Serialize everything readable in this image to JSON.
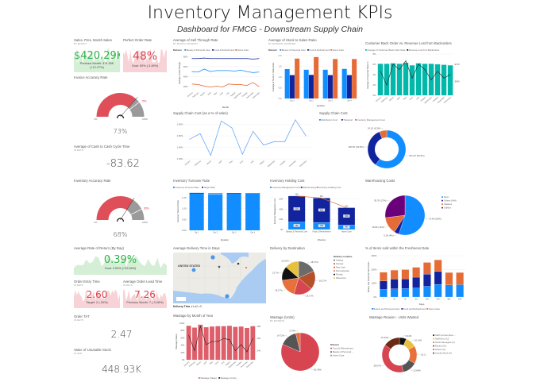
{
  "header": {
    "title": "Inventory Management KPIs",
    "subtitle": "Dashboard for FMCG - Downstream Supply Chain"
  },
  "kpis": {
    "sales": {
      "title": "Sales, Prev. Month Sales",
      "subtitle": "BY MONTH",
      "value": "$420.29K",
      "comparison": "Previous Month: 374.35K",
      "change": "(+12.27%)",
      "color": "#2fb34b",
      "fill": "#d5efd6"
    },
    "perfect_order": {
      "title": "Perfect Order Rate",
      "value": "48%",
      "comparison": "Goal: 50% (-3.46%)",
      "color": "#d9434f",
      "fill": "#f7d3d7"
    },
    "invoice_accuracy": {
      "title": "Invoice Accuracy Rate",
      "value": "73%",
      "target_label": "79%",
      "min_label": "0%",
      "max_label": "100%",
      "value_fraction": 0.73,
      "target_fraction": 0.79
    },
    "cash_cycle": {
      "title": "Average of Cash to Cash Cycle Time",
      "subtitle": "IN DAYS",
      "value": "-83.62"
    },
    "inventory_accuracy": {
      "title": "Inventory Accuracy Rate",
      "value": "68%",
      "target_label": "85%",
      "min_label": "0%",
      "max_label": "100%",
      "value_fraction": 0.68,
      "target_fraction": 0.85
    },
    "return_rate": {
      "title": "Average Rate of Return (By Day)",
      "value": "0.39%",
      "comparison": "Goal: 0.50% (+22.56%)",
      "color": "#2fb34b",
      "fill": "#d5efd6"
    },
    "order_entry": {
      "title": "Order Entry Time",
      "subtitle": "IN DAYS",
      "value": "2.60",
      "comparison": "Target: 2 (-30%)",
      "color": "#d9434f",
      "fill": "#f7d3d7"
    },
    "lead_time": {
      "title": "Average Order Lead Time",
      "subtitle": "IN DAYS",
      "value": "7.26",
      "comparison": "Previous Month: 7 (-3.08%)",
      "color": "#d9434f",
      "fill": "#f7d3d7"
    },
    "order_tat": {
      "title": "Order TAT",
      "subtitle": "IN DAYS",
      "value": "2.47"
    },
    "unusable_stock": {
      "title": "Value of Unusable Stock",
      "subtitle": "IN USD",
      "value": "448.93K"
    }
  },
  "gauge_colors": {
    "value": "#de4f5a",
    "remainder": "#9a9a9a",
    "target": "#ffffff"
  },
  "map": {
    "title": "Average Delivery Time in Days",
    "country_label": "UNITED STATES",
    "legend_title": "Delivery Time",
    "legend": [
      {
        "label": "1",
        "color": "#e02b2b"
      },
      {
        "label": "2",
        "color": "#333333"
      },
      {
        "label": "3",
        "color": "#3a8ef0"
      }
    ]
  },
  "chart_data": [
    {
      "id": "sell_through",
      "type": "line",
      "title": "Average of Sell Through Rate",
      "subtitle": "BY MONTH, DIVISION",
      "legend_title": "Division",
      "categories": [
        "January",
        "February",
        "March",
        "April",
        "May",
        "June",
        "July",
        "August",
        "September",
        "October",
        "November",
        "December"
      ],
      "series": [
        {
          "name": "Beauty & Personal Care",
          "color": "#118dff",
          "values": [
            50,
            49,
            55,
            50,
            52,
            52,
            52,
            51,
            53,
            50,
            48,
            49
          ]
        },
        {
          "name": "Food & Refreshment",
          "color": "#12239e",
          "values": [
            76,
            76,
            77,
            76,
            76,
            76,
            76,
            76,
            76,
            76,
            75,
            76
          ]
        },
        {
          "name": "Home Care",
          "color": "#e66c37",
          "values": [
            25,
            24,
            21,
            19,
            21,
            19,
            25,
            24,
            24,
            22,
            28,
            20
          ]
        }
      ],
      "xlabel": "Month",
      "ylabel": "Average of Sell Through",
      "ylim": [
        12,
        82
      ],
      "yticks": [
        20,
        40,
        60,
        80
      ],
      "ysuffix": "%",
      "grid": true
    },
    {
      "id": "stock_sales",
      "type": "bar",
      "title": "Average of Stock to Sales Ratio",
      "subtitle": "BY DIVISION, QUARTER",
      "legend_title": "Division",
      "categories": [
        "Qtr 1",
        "Qtr 2",
        "Qtr 3",
        "Qtr 4"
      ],
      "series": [
        {
          "name": "Beauty & Personal Care",
          "color": "#118dff",
          "values": [
            1.37,
            1.34,
            1.34,
            1.38
          ]
        },
        {
          "name": "Food & Refreshment",
          "color": "#12239e",
          "values": [
            1.09,
            1.1,
            1.09,
            1.09
          ]
        },
        {
          "name": "Home Care",
          "color": "#e66c37",
          "values": [
            1.86,
            1.93,
            1.84,
            1.84
          ]
        }
      ],
      "xlabel": "Quarter",
      "ylabel": "Average of Stock to Sales Ratio",
      "ylim": [
        0,
        2
      ],
      "yticks": [
        0,
        0.5,
        1,
        1.5,
        2
      ],
      "ydecimals": 1,
      "grid": true
    },
    {
      "id": "back_order",
      "type": "bar_line",
      "title": "Customer Back Order vs. Revenue Lost from Backorders",
      "categories": [
        "January",
        "February",
        "March",
        "April",
        "May",
        "June",
        "July",
        "August",
        "September",
        "October",
        "November",
        "December"
      ],
      "series": [
        {
          "name": "Average of Customer Back Order Rate",
          "color": "#01b8aa",
          "values": [
            6.1,
            6.1,
            6.2,
            6.1,
            6.3,
            5.8,
            6.2,
            6.1,
            6.1,
            6.0,
            5.9,
            5.8
          ]
        },
        {
          "name": "Revenue Lost from Backorders",
          "color": "#222222",
          "axis": "right",
          "values": [
            66,
            58,
            70,
            67,
            72,
            62,
            70,
            67,
            61,
            66,
            62,
            64
          ]
        }
      ],
      "ylabel": "Average of Customer Back O...",
      "ylim": [
        0,
        8
      ],
      "yticks": [
        0,
        2,
        4,
        6,
        8
      ],
      "ysuffix": "%",
      "ylim_right": [
        52,
        76
      ],
      "yticks_right": [
        60,
        70
      ],
      "yprefix_right": "$",
      "ysuffix_right": "K",
      "grid": true
    },
    {
      "id": "supply_chain_cost_pct",
      "type": "line",
      "title": "Supply Chain Cost (as a % of sales)",
      "categories": [
        "January",
        "February",
        "March",
        "April",
        "May",
        "June",
        "July",
        "August",
        "September",
        "October",
        "November",
        "December"
      ],
      "series": [
        {
          "color": "#6aaaf5",
          "values": [
            1.47,
            1.52,
            1.33,
            1.63,
            1.57,
            1.34,
            1.54,
            1.42,
            1.45,
            1.45,
            1.64,
            1.5
          ]
        }
      ],
      "ylim": [
        1.3,
        1.66
      ],
      "yticks": [
        1.3,
        1.4,
        1.5,
        1.6
      ],
      "ydecimals": 2,
      "ysuffix": "%",
      "grid": true
    },
    {
      "id": "supply_chain_cost",
      "type": "donut",
      "title": "Supply Chain Cost",
      "slices": [
        {
          "label": "Distribution Cost",
          "value": 59.9,
          "color": "#118dff",
          "data_label": "231.2K (59.9%)"
        },
        {
          "label": "Transport",
          "value": 33.8,
          "color": "#12239e",
          "data_label": "130.5K (33.8%)"
        },
        {
          "label": "Inventory Management Cost",
          "value": 6.3,
          "color": "#e66c37",
          "data_label": "24.1K (6.3%)"
        }
      ]
    },
    {
      "id": "inventory_turnover",
      "type": "bar",
      "title": "Inventory Turnover Rate",
      "categories": [
        "Qtr 1",
        "Qtr 2",
        "Qtr 3",
        "Qtr 4"
      ],
      "series": [
        {
          "name": "Inventory Turnover Rate",
          "color": "#118dff",
          "values": [
            1.72,
            1.66,
            1.7,
            1.68
          ]
        }
      ],
      "target": {
        "name": "Target Rate",
        "color": "#12239e",
        "values": [
          1.7,
          1.7,
          1.7,
          1.7
        ]
      },
      "xlabel": "Quarter",
      "ylabel": "Inventory Turnover Rate",
      "ylim": [
        0,
        1.75
      ],
      "yticks": [
        0,
        0.5,
        1,
        1.5
      ],
      "ydecimals": 2,
      "grid": true
    },
    {
      "id": "inventory_holding_cost",
      "type": "stacked_bar",
      "title": "Inventory Holding Cost",
      "categories": [
        "Beauty & Personal Care",
        "Food & Refreshment",
        "Home Care"
      ],
      "series": [
        {
          "name": "Inventory Management Cost",
          "color": "#118dff",
          "values": [
            15,
            14,
            9
          ],
          "labels": [
            "15K",
            "14K",
            "9K"
          ]
        },
        {
          "name": "Warehousing",
          "color": "#12239e",
          "values": [
            51,
            48,
            34
          ],
          "labels": [
            "51K",
            "48K",
            "34K"
          ]
        }
      ],
      "line": {
        "name": "Inventory Holding Cost",
        "color": "#e66c37",
        "values": [
          66,
          62,
          43
        ],
        "labels": [
          "66K",
          "62K",
          "43K"
        ]
      },
      "xlabel": "Division",
      "ylabel": "Inventory Management Cost",
      "ylim": [
        0,
        72
      ],
      "yticks": [
        0,
        20,
        40,
        60
      ],
      "ysuffix": "K",
      "grid": true
    },
    {
      "id": "warehousing_costs",
      "type": "pie",
      "title": "Warehousing Costs",
      "slices": [
        {
          "label": "Rent",
          "value": 55,
          "color": "#118dff",
          "data_label": "72.6K (55%)"
        },
        {
          "label": "Others (WH)",
          "value": 4,
          "color": "#12239e",
          "data_label": "5.1K (4%)"
        },
        {
          "label": "Salaries",
          "value": 14,
          "color": "#e66c37",
          "data_label": "18.9K (14%)"
        },
        {
          "label": "Utilities",
          "value": 27,
          "color": "#6b007b",
          "data_label": "35.7K (27%)"
        }
      ]
    },
    {
      "id": "delivery_by_destination",
      "type": "pie",
      "title": "Delivery by Destination",
      "legend_title": "Delivery Location",
      "slices": [
        {
          "label": "Indiana",
          "value": 18.17,
          "color": "#6b6b6b",
          "data_label": "18.17%"
        },
        {
          "label": "Kansas",
          "value": 18.17,
          "color": "#b5502a",
          "data_label": "18.17%"
        },
        {
          "label": "New York",
          "value": 18.17,
          "color": "#d64550",
          "data_label": "18.17%"
        },
        {
          "label": "Pennsylvania",
          "value": 18.17,
          "color": "#e8703a",
          "data_label": "18.17%"
        },
        {
          "label": "Florida",
          "value": 13.7,
          "color": "#111111",
          "data_label": "13.7%"
        },
        {
          "label": "Wisconsin",
          "value": 13.61,
          "color": "#e8c040",
          "data_label": "13.61%"
        }
      ]
    },
    {
      "id": "freshness",
      "type": "stacked_bar",
      "title": "% of Items sold within the Freshness Date",
      "categories": [
        "7",
        "15",
        "30",
        "60",
        "120",
        "240",
        "480",
        "540"
      ],
      "series": [
        {
          "name": "Beauty and Personal Care",
          "color": "#118dff",
          "values": [
            55,
            60,
            62,
            66,
            78,
            92,
            88,
            90
          ]
        },
        {
          "name": "Food and Refreshment",
          "color": "#12239e",
          "values": [
            62,
            70,
            70,
            78,
            88,
            93,
            0,
            0
          ]
        },
        {
          "name": "Home Care",
          "color": "#e66c37",
          "values": [
            63,
            65,
            67,
            72,
            85,
            85,
            90,
            88
          ]
        }
      ],
      "xlabel": "Days",
      "ylabel": "Beauty and Personal Care Fresh...",
      "ylim": [
        0,
        300
      ],
      "yticks": [
        0,
        100,
        200,
        300
      ],
      "ysuffix": "%",
      "legend_position": "bottom",
      "grid": true
    },
    {
      "id": "wastage_by_month",
      "type": "bar_line",
      "title": "Wastage by Month of Year",
      "categories": [
        "January",
        "February",
        "March",
        "April",
        "May",
        "June",
        "July",
        "August",
        "September",
        "October",
        "November",
        "December"
      ],
      "series": [
        {
          "name": "Wastage (Value)",
          "color": "#de5f6a",
          "values": [
            93,
            88,
            96,
            89,
            91,
            92,
            92,
            93,
            90,
            91,
            87,
            92
          ]
        },
        {
          "name": "Wastage (Units)",
          "color": "#222222",
          "axis": "right",
          "values": [
            265,
            240,
            280,
            250,
            255,
            255,
            260,
            258,
            240,
            250,
            238,
            260
          ]
        }
      ],
      "ylabel": "Wastage (Value)",
      "ylim": [
        0,
        100
      ],
      "yticks": [
        0,
        20,
        40,
        60,
        80,
        100
      ],
      "ysuffix": "K",
      "ylim_right": [
        225,
        285
      ],
      "yticks_right": [
        240,
        260,
        280
      ],
      "legend_position": "bottom",
      "grid": true
    },
    {
      "id": "wastage_units",
      "type": "pie",
      "title": "Wastage (Units)",
      "subtitle": "BY DIVISION",
      "legend_title": "Division",
      "slices": [
        {
          "label": "Food & Refreshment",
          "value": 81.49,
          "color": "#d64550",
          "data_label": "81.49%"
        },
        {
          "label": "Beauty & Personal ...",
          "value": 14.72,
          "color": "#555555",
          "data_label": "14.72%"
        },
        {
          "label": "Home Care",
          "value": 3.79,
          "color": "#e8703a",
          "data_label": "3.79%"
        }
      ]
    },
    {
      "id": "wastage_reason",
      "type": "donut",
      "title": "Wastage Reason - Units Wasted",
      "slices": [
        {
          "label": "Staff Consumption ...",
          "value": 6.44,
          "color": "#111111",
          "data_label": "6.44%"
        },
        {
          "label": "Staff Error (U)",
          "value": 10.14,
          "color": "#e8c040",
          "data_label": "10.14%"
        },
        {
          "label": "Stock Damaged (U)",
          "value": 16.35,
          "color": "#e8703a",
          "data_label": "16.3..."
        },
        {
          "label": "Expired (U)",
          "value": 13.66,
          "color": "#555555",
          "data_label": "13.66%"
        },
        {
          "label": "Others (U)",
          "value": 38.07,
          "color": "#d64550",
          "data_label": "38.07%"
        },
        {
          "label": "Unsold Stock (U)",
          "value": 15.34,
          "color": "#6b2a14",
          "data_label": "15.34%"
        }
      ]
    }
  ]
}
